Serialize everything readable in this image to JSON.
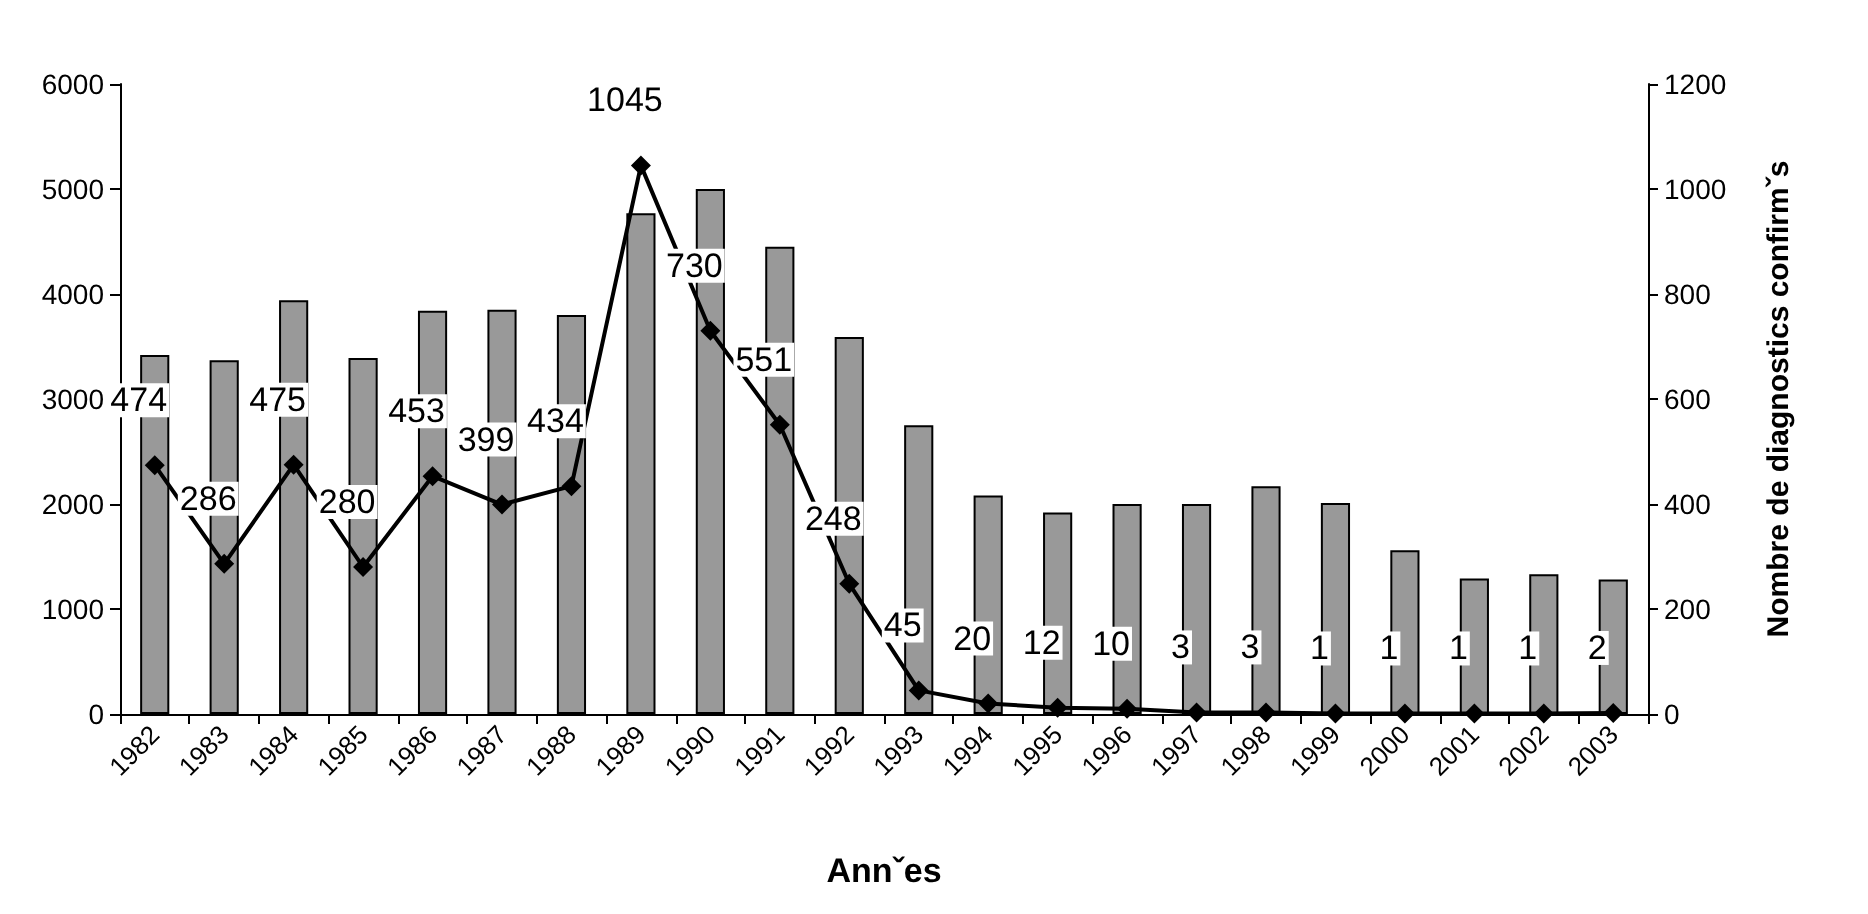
{
  "chart_data": {
    "type": "bar",
    "xlabel": "Annˇes",
    "y2label": "Nombre de diagnostics confirmˇs",
    "categories": [
      "1982",
      "1983",
      "1984",
      "1985",
      "1986",
      "1987",
      "1988",
      "1989",
      "1990",
      "1991",
      "1992",
      "1993",
      "1994",
      "1995",
      "1996",
      "1997",
      "1998",
      "1999",
      "2000",
      "2001",
      "2002",
      "2003"
    ],
    "series": [
      {
        "color": "#999999",
        "values": [
          3420,
          3370,
          3940,
          3390,
          3840,
          3850,
          3800,
          4770,
          5000,
          4450,
          3590,
          2750,
          2080,
          1920,
          2000,
          2000,
          2170,
          2010,
          1560,
          1290,
          1330,
          1280
        ]
      },
      {
        "type": "line",
        "axis": "y2",
        "color": "#000000",
        "marker": "diamond",
        "data_labels": true,
        "values": [
          474,
          286,
          475,
          280,
          453,
          399,
          434,
          1045,
          730,
          551,
          248,
          45,
          20,
          12,
          10,
          3,
          3,
          1,
          1,
          1,
          1,
          2
        ]
      }
    ],
    "ylim": [
      0,
      6000
    ],
    "yticks": [
      0,
      1000,
      2000,
      3000,
      4000,
      5000,
      6000
    ],
    "y2lim": [
      0,
      1200
    ],
    "y2ticks": [
      0,
      200,
      400,
      600,
      800,
      1000,
      1200
    ],
    "grid": false,
    "legend": false
  }
}
